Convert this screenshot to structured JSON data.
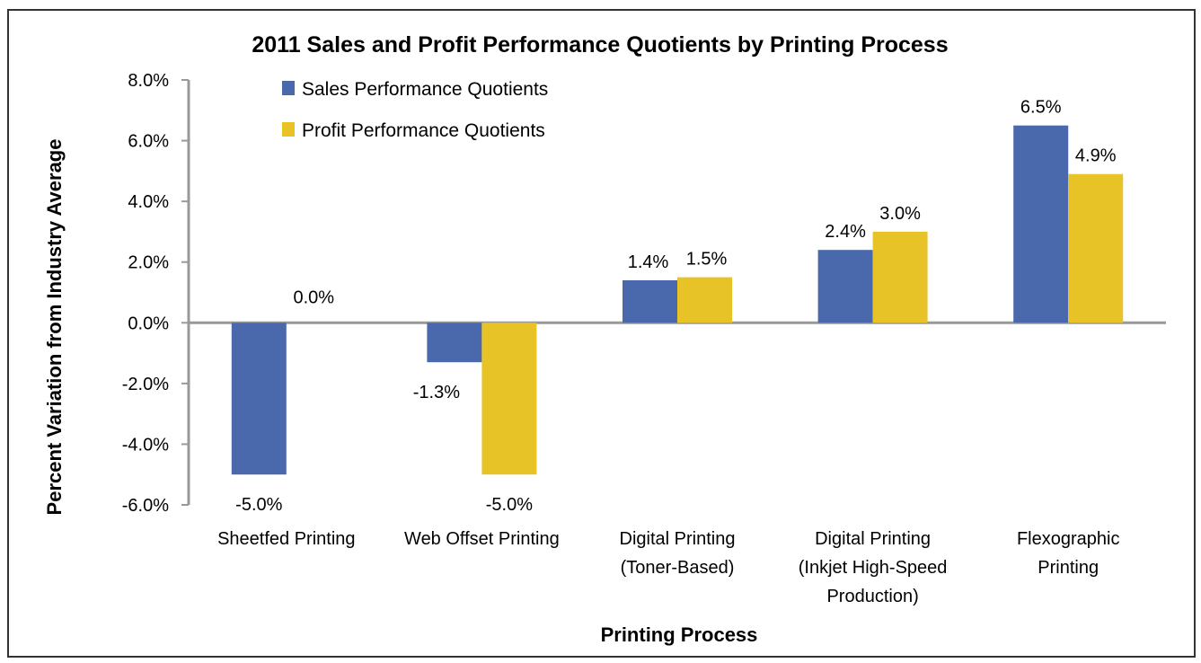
{
  "chart_data": {
    "type": "bar",
    "title": "2011 Sales and Profit Performance Quotients by Printing Process",
    "xlabel": "Printing Process",
    "ylabel": "Percent Variation from Industry Average",
    "ylim": [
      -6.0,
      8.0
    ],
    "yticks": [
      8.0,
      6.0,
      4.0,
      2.0,
      0.0,
      -2.0,
      -4.0,
      -6.0
    ],
    "ytick_labels": [
      "8.0%",
      "6.0%",
      "4.0%",
      "2.0%",
      "0.0%",
      "-2.0%",
      "-4.0%",
      "-6.0%"
    ],
    "grid": false,
    "legend_position": "top-left",
    "categories": [
      [
        "Sheetfed Printing"
      ],
      [
        "Web Offset Printing"
      ],
      [
        "Digital Printing",
        "(Toner-Based)"
      ],
      [
        "Digital Printing",
        "(Inkjet High-Speed",
        "Production)"
      ],
      [
        "Flexographic",
        "Printing"
      ]
    ],
    "series": [
      {
        "name": "Sales Performance Quotients",
        "color": "#4a69ac",
        "values": [
          -5.0,
          -1.3,
          1.4,
          2.4,
          6.5
        ],
        "labels": [
          "-5.0%",
          "-1.3%",
          "1.4%",
          "2.4%",
          "6.5%"
        ]
      },
      {
        "name": "Profit Performance Quotients",
        "color": "#e8c328",
        "values": [
          0.0,
          -5.0,
          1.5,
          3.0,
          4.9
        ],
        "labels": [
          "0.0%",
          "-5.0%",
          "1.5%",
          "3.0%",
          "4.9%"
        ]
      }
    ],
    "axis_color": "#999999"
  }
}
